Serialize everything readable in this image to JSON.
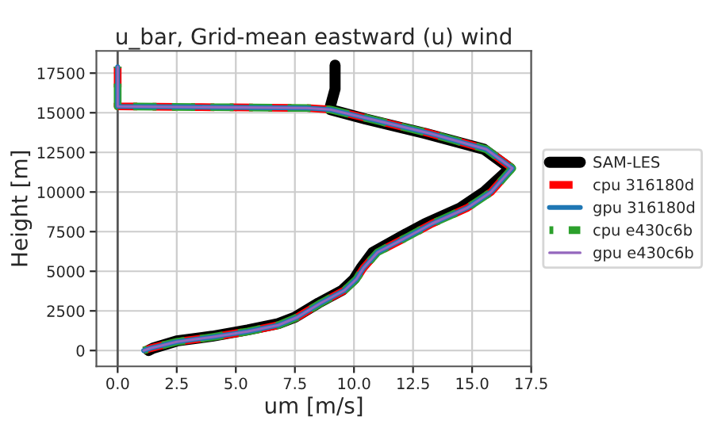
{
  "chart_data": {
    "type": "line",
    "title": "u_bar, Grid-mean eastward (u) wind",
    "xlabel": "um [m/s]",
    "ylabel": "Height [m]",
    "xlim": [
      -0.9,
      17.5
    ],
    "ylim": [
      -1000,
      18900
    ],
    "xticks": [
      {
        "value": 0,
        "label": "0.0"
      },
      {
        "value": 2.5,
        "label": "2.5"
      },
      {
        "value": 5,
        "label": "5.0"
      },
      {
        "value": 7.5,
        "label": "7.5"
      },
      {
        "value": 10,
        "label": "10.0"
      },
      {
        "value": 12.5,
        "label": "12.5"
      },
      {
        "value": 15,
        "label": "15.0"
      },
      {
        "value": 17.5,
        "label": "17.5"
      }
    ],
    "yticks": [
      0,
      2500,
      5000,
      7500,
      10000,
      12500,
      15000,
      17500
    ],
    "grid": true,
    "legend": "right",
    "ref_lines": [
      {
        "axis": "x",
        "value": 0,
        "color": "#555555",
        "line_style": "solid"
      }
    ],
    "series": [
      {
        "name": "SAM-LES",
        "color": "#000000",
        "line_style": "solid",
        "x": [
          1.3,
          1.5,
          2.5,
          4,
          5.5,
          6.8,
          7.5,
          8.5,
          9.5,
          10,
          10.3,
          10.8,
          12,
          13,
          14.5,
          15.5,
          16.6,
          15.5,
          13,
          10.5,
          9,
          9,
          9.2,
          9.2
        ],
        "values": [
          0,
          150,
          600,
          900,
          1300,
          1700,
          2100,
          3000,
          3800,
          4500,
          5200,
          6200,
          7200,
          8000,
          9000,
          10000,
          11500,
          12700,
          13700,
          14600,
          15200,
          15400,
          16500,
          18000
        ]
      },
      {
        "name": "cpu 316180d",
        "color": "#ff0000",
        "line_style": "dashed",
        "x": [
          1.1,
          1.4,
          2.5,
          4,
          5.5,
          6.8,
          7.6,
          8.6,
          9.6,
          10.1,
          10.4,
          11,
          12.3,
          13.3,
          14.8,
          15.8,
          16.7,
          15.6,
          13.2,
          10.7,
          9,
          8,
          0,
          0
        ],
        "values": [
          0,
          150,
          550,
          850,
          1200,
          1600,
          2100,
          3000,
          3800,
          4500,
          5200,
          6200,
          7200,
          8000,
          9000,
          10000,
          11500,
          12700,
          13700,
          14600,
          15200,
          15300,
          15400,
          17900
        ]
      },
      {
        "name": "gpu 316180d",
        "color": "#1f77b4",
        "line_style": "solid",
        "x": [
          1.1,
          1.4,
          2.5,
          4,
          5.5,
          6.8,
          7.6,
          8.6,
          9.6,
          10.1,
          10.4,
          11,
          12.3,
          13.3,
          14.8,
          15.8,
          16.7,
          15.6,
          13.2,
          10.7,
          9,
          8,
          0,
          0
        ],
        "values": [
          0,
          150,
          550,
          850,
          1200,
          1600,
          2100,
          3000,
          3800,
          4500,
          5200,
          6200,
          7200,
          8000,
          9000,
          10000,
          11500,
          12700,
          13700,
          14600,
          15200,
          15300,
          15400,
          17900
        ]
      },
      {
        "name": "cpu e430c6b",
        "color": "#2ca02c",
        "line_style": "dashed",
        "x": [
          1.1,
          1.4,
          2.5,
          4,
          5.5,
          6.8,
          7.6,
          8.6,
          9.6,
          10.1,
          10.4,
          11,
          12.3,
          13.3,
          14.8,
          15.8,
          16.7,
          15.6,
          13.2,
          10.7,
          9,
          8,
          0,
          0
        ],
        "values": [
          0,
          150,
          550,
          850,
          1200,
          1600,
          2100,
          3000,
          3800,
          4500,
          5200,
          6200,
          7200,
          8000,
          9000,
          10000,
          11500,
          12700,
          13700,
          14600,
          15200,
          15300,
          15400,
          17900
        ]
      },
      {
        "name": "gpu e430c6b",
        "color": "#9467bd",
        "line_style": "solid",
        "x": [
          1.1,
          1.4,
          2.5,
          4,
          5.5,
          6.8,
          7.6,
          8.6,
          9.6,
          10.1,
          10.4,
          11,
          12.3,
          13.3,
          14.8,
          15.8,
          16.7,
          15.6,
          13.2,
          10.7,
          9,
          8,
          0,
          0
        ],
        "values": [
          0,
          150,
          550,
          850,
          1200,
          1600,
          2100,
          3000,
          3800,
          4500,
          5200,
          6200,
          7200,
          8000,
          9000,
          10000,
          11500,
          12700,
          13700,
          14600,
          15200,
          15300,
          15400,
          17900
        ]
      }
    ]
  }
}
